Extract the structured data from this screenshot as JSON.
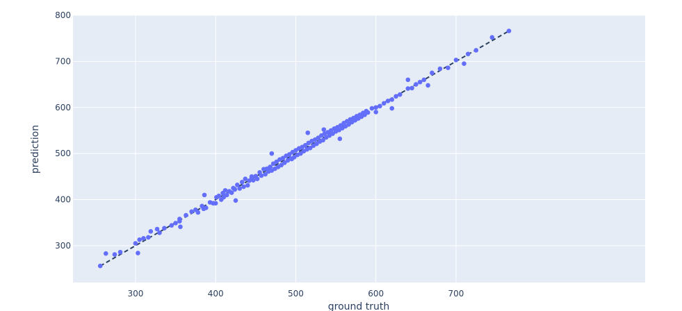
{
  "chart_data": {
    "type": "scatter",
    "title": "",
    "xlabel": "ground truth",
    "ylabel": "prediction",
    "xlim": [
      222,
      936
    ],
    "ylim": [
      220,
      800
    ],
    "x_ticks": [
      300,
      400,
      500,
      600,
      700
    ],
    "y_ticks": [
      300,
      400,
      500,
      600,
      700,
      800
    ],
    "grid": true,
    "colors": {
      "plot_bg": "#e5ecf6",
      "grid": "#ffffff",
      "points": "#636efa",
      "reference_line": "#2a3f5f"
    },
    "reference_line": {
      "style": "dashed",
      "from": [
        256,
        256
      ],
      "to": [
        766,
        766
      ]
    },
    "series": [
      {
        "x": [
          256,
          263,
          274,
          281,
          300,
          303,
          305,
          310,
          316,
          319,
          327,
          330,
          336,
          345,
          350,
          355,
          356,
          355,
          363,
          370,
          375,
          378,
          383,
          385,
          388,
          393,
          397,
          400,
          401,
          404,
          407,
          409,
          410,
          412,
          414,
          417,
          420,
          422,
          424,
          427,
          430,
          433,
          435,
          437,
          440,
          442,
          445,
          447,
          450,
          452,
          455,
          457,
          460,
          462,
          464,
          466,
          468,
          470,
          472,
          474,
          476,
          478,
          480,
          482,
          484,
          486,
          488,
          490,
          492,
          494,
          496,
          498,
          500,
          502,
          504,
          506,
          508,
          510,
          512,
          514,
          516,
          518,
          520,
          522,
          524,
          526,
          528,
          530,
          532,
          534,
          536,
          538,
          540,
          542,
          544,
          546,
          548,
          550,
          552,
          554,
          556,
          558,
          560,
          562,
          564,
          566,
          568,
          570,
          572,
          574,
          576,
          578,
          580,
          582,
          584,
          586,
          588,
          590,
          595,
          600,
          605,
          610,
          615,
          620,
          625,
          630,
          640,
          645,
          650,
          655,
          660,
          665,
          670,
          680,
          690,
          700,
          710,
          715,
          725,
          745,
          766,
          386,
          425,
          445,
          470,
          495,
          515,
          535,
          555,
          575,
          600,
          620,
          640
        ],
        "y": [
          256,
          283,
          281,
          286,
          305,
          284,
          313,
          316,
          318,
          331,
          336,
          328,
          338,
          344,
          349,
          353,
          341,
          358,
          366,
          374,
          378,
          372,
          386,
          380,
          382,
          394,
          392,
          392,
          405,
          408,
          400,
          414,
          405,
          420,
          410,
          418,
          415,
          425,
          422,
          432,
          424,
          438,
          428,
          445,
          431,
          441,
          447,
          442,
          451,
          445,
          459,
          452,
          466,
          455,
          467,
          461,
          471,
          463,
          478,
          467,
          482,
          471,
          487,
          475,
          490,
          480,
          495,
          485,
          498,
          489,
          503,
          492,
          507,
          497,
          511,
          500,
          514,
          505,
          518,
          509,
          523,
          512,
          527,
          517,
          530,
          521,
          534,
          526,
          539,
          529,
          543,
          535,
          546,
          539,
          550,
          543,
          554,
          548,
          557,
          551,
          561,
          555,
          566,
          559,
          570,
          563,
          574,
          568,
          577,
          572,
          581,
          576,
          584,
          580,
          588,
          584,
          592,
          589,
          598,
          600,
          603,
          609,
          614,
          617,
          624,
          628,
          641,
          642,
          650,
          655,
          660,
          648,
          675,
          684,
          686,
          703,
          695,
          716,
          724,
          752,
          766,
          410,
          398,
          450,
          500,
          488,
          545,
          552,
          532,
          578,
          590,
          598,
          660
        ]
      }
    ]
  }
}
